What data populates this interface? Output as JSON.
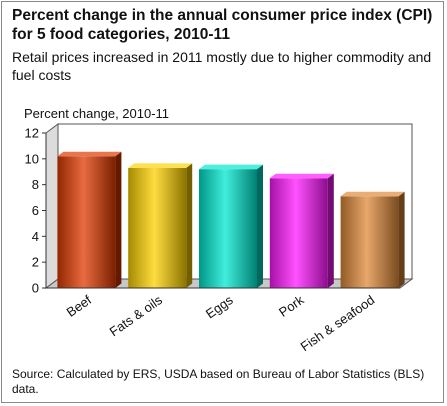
{
  "title": "Percent change in the annual consumer price index (CPI) for 5 food categories, 2010-11",
  "subtitle": "Retail prices increased in 2011 mostly due to higher commodity and fuel costs",
  "source": "Source: Calculated by ERS, USDA based on Bureau of Labor Statistics (BLS) data.",
  "chart_data": {
    "type": "bar",
    "title": "Percent change in the annual consumer price index (CPI) for 5 food categories, 2010-11",
    "subtitle": "Retail prices increased in 2011 mostly due to higher commodity and fuel costs",
    "ylabel": "Percent change, 2010-11",
    "xlabel": "",
    "categories": [
      "Beef",
      "Fats & oils",
      "Eggs",
      "Pork",
      "Fish & seafood"
    ],
    "values": [
      10.2,
      9.3,
      9.2,
      8.5,
      7.1
    ],
    "ylim": [
      0,
      12
    ],
    "yticks": [
      "0",
      "2",
      "4",
      "6",
      "8",
      "10",
      "12"
    ],
    "grid": false,
    "colors": [
      "#e03a00",
      "#ffd200",
      "#00e8d0",
      "#ff18ff",
      "#e08a3a"
    ],
    "source": "Source: Calculated by ERS, USDA based on Bureau of Labor Statistics (BLS) data."
  }
}
